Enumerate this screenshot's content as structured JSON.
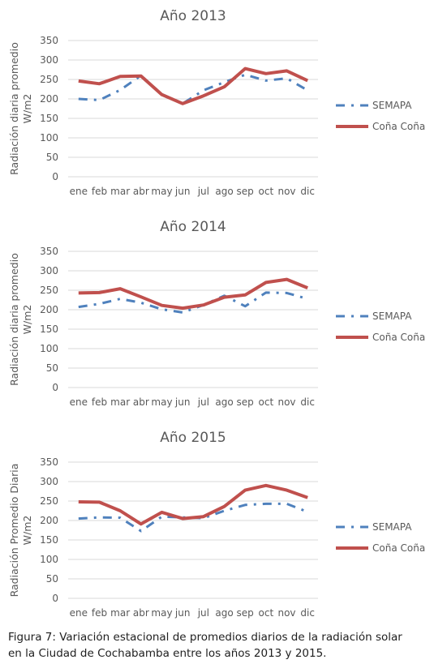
{
  "chart_data": [
    {
      "type": "line",
      "title": "Año 2013",
      "ylabel_lines": [
        "Radiación diaria promedio",
        "W/m2"
      ],
      "categories": [
        "ene",
        "feb",
        "mar",
        "abr",
        "may",
        "jun",
        "jul",
        "ago",
        "sep",
        "oct",
        "nov",
        "dic"
      ],
      "ylim": [
        0,
        350
      ],
      "yticks": [
        0,
        50,
        100,
        150,
        200,
        250,
        300,
        350
      ],
      "grid": true,
      "legend": "right",
      "series": [
        {
          "name": "SEMAPA",
          "style": "dash-dot",
          "color": "#4f81bd",
          "values": [
            200,
            197,
            223,
            260,
            212,
            188,
            222,
            243,
            262,
            247,
            253,
            222
          ]
        },
        {
          "name": "Coña Coña",
          "style": "solid",
          "color": "#c0504d",
          "values": [
            246,
            239,
            258,
            259,
            211,
            188,
            208,
            231,
            278,
            265,
            272,
            247
          ]
        }
      ]
    },
    {
      "type": "line",
      "title": "Año 2014",
      "ylabel_lines": [
        "Radiación diaria promedio",
        "W/m2"
      ],
      "categories": [
        "ene",
        "feb",
        "mar",
        "abr",
        "may",
        "jun",
        "jul",
        "ago",
        "sep",
        "oct",
        "nov",
        "dic"
      ],
      "ylim": [
        0,
        350
      ],
      "yticks": [
        0,
        50,
        100,
        150,
        200,
        250,
        300,
        350
      ],
      "grid": true,
      "legend": "right",
      "series": [
        {
          "name": "SEMAPA",
          "style": "dash-dot",
          "color": "#4f81bd",
          "values": [
            207,
            215,
            228,
            218,
            201,
            193,
            212,
            236,
            209,
            244,
            243,
            228
          ]
        },
        {
          "name": "Coña Coña",
          "style": "solid",
          "color": "#c0504d",
          "values": [
            243,
            244,
            254,
            233,
            211,
            204,
            212,
            232,
            238,
            270,
            278,
            256
          ]
        }
      ]
    },
    {
      "type": "line",
      "title": "Año 2015",
      "ylabel_lines": [
        "Radiación Promedio Diaria",
        "W/m2"
      ],
      "categories": [
        "ene",
        "feb",
        "mar",
        "abr",
        "may",
        "jun",
        "jul",
        "ago",
        "sep",
        "oct",
        "nov",
        "dic"
      ],
      "ylim": [
        0,
        350
      ],
      "yticks": [
        0,
        50,
        100,
        150,
        200,
        250,
        300,
        350
      ],
      "grid": true,
      "legend": "right",
      "series": [
        {
          "name": "SEMAPA",
          "style": "dash-dot",
          "color": "#4f81bd",
          "values": [
            205,
            208,
            207,
            173,
            210,
            208,
            206,
            225,
            240,
            243,
            243,
            222
          ]
        },
        {
          "name": "Coña Coña",
          "style": "solid",
          "color": "#c0504d",
          "values": [
            248,
            247,
            225,
            191,
            221,
            205,
            210,
            236,
            278,
            290,
            278,
            259
          ]
        }
      ]
    }
  ],
  "caption": {
    "lines": [
      "Figura 7: Variación estacional de promedios diarios de la radiación solar",
      "en la Ciudad de Cochabamba entre los años 2013 y 2015."
    ]
  }
}
